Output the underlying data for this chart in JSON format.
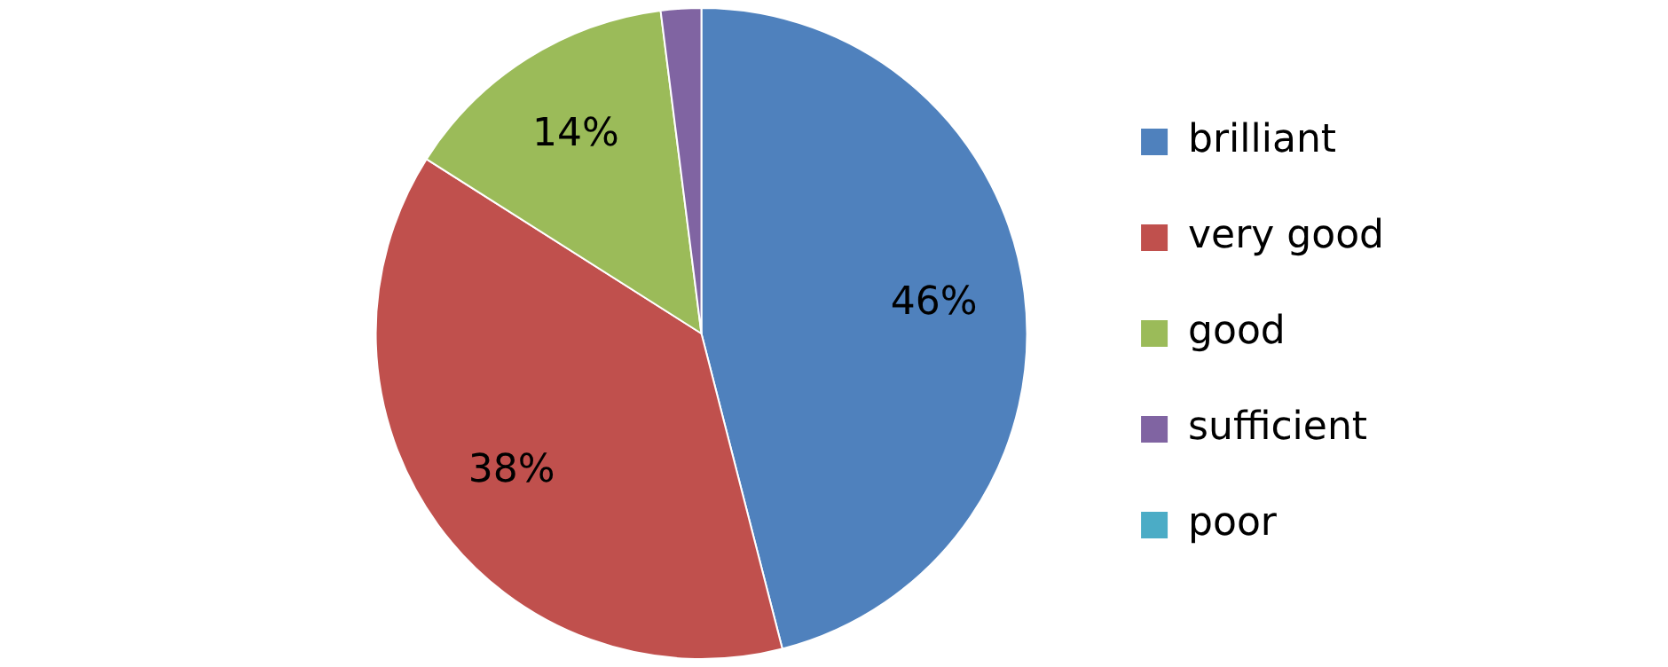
{
  "chart_data": {
    "type": "pie",
    "categories": [
      "brilliant",
      "very good",
      "good",
      "sufficient",
      "poor"
    ],
    "values": [
      46,
      38,
      14,
      2,
      0
    ],
    "colors": [
      "#4f81bd",
      "#c0504d",
      "#9bbb59",
      "#8064a2",
      "#4bacc6"
    ],
    "value_labels": [
      "46%",
      "38%",
      "14%",
      null,
      null
    ],
    "legend": "right"
  }
}
